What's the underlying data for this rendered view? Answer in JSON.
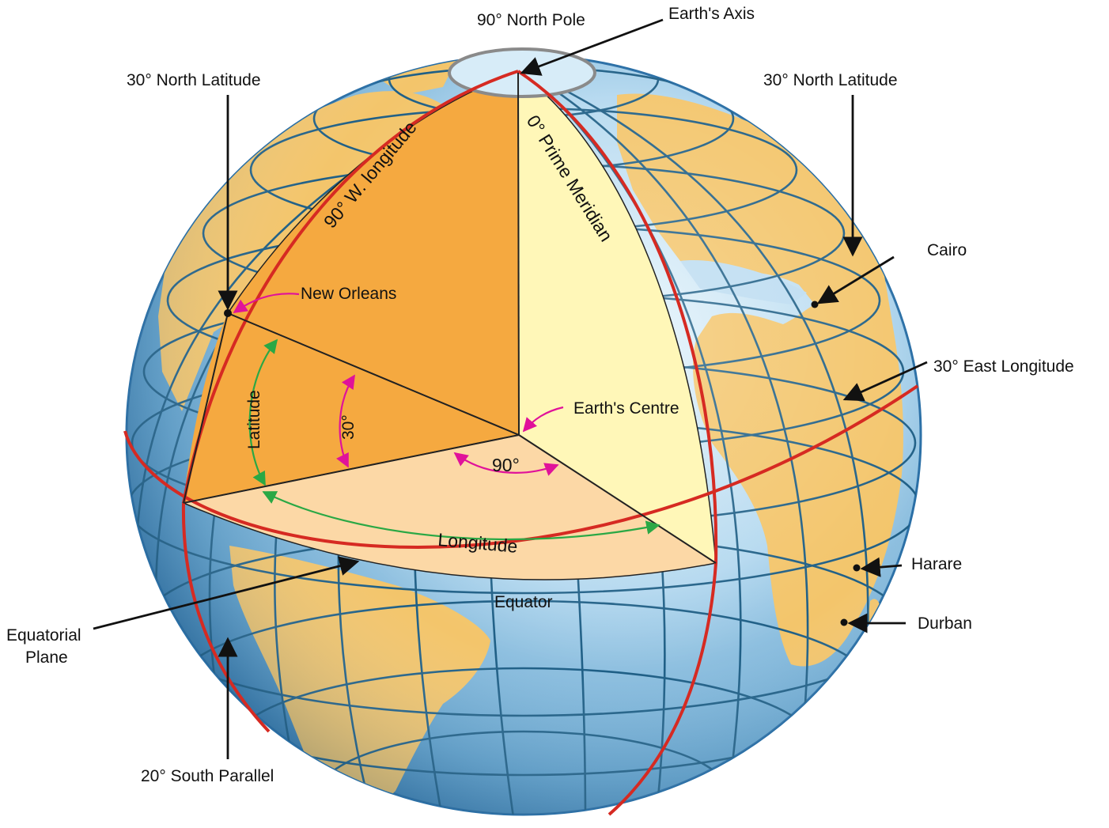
{
  "colors": {
    "ocean_light": "#d7ecf8",
    "ocean_mid": "#7fb8dc",
    "ocean_dark": "#2f79b0",
    "land": "#f3c56b",
    "grid": "#1f5f86",
    "highlight_line": "#d62a22",
    "wedge_dark_orange": "#f5a940",
    "wedge_light_yellow": "#fff7b8",
    "wedge_peach": "#fcd8a6",
    "arrow_black": "#111111",
    "arrow_magenta": "#e0129a",
    "arrow_green": "#2aa845"
  },
  "labels": {
    "north_pole": "90° North Pole",
    "earths_axis": "Earth's Axis",
    "north_lat_left": "30° North Latitude",
    "north_lat_right": "30° North Latitude",
    "w_longitude": "90° W. longitude",
    "prime_meridian": "0° Prime Meridian",
    "new_orleans": "New Orleans",
    "cairo": "Cairo",
    "east_longitude": "30° East Longitude",
    "earths_centre": "Earth's Centre",
    "latitude": "Latitude",
    "lat_angle": "30°",
    "lon_angle": "90°",
    "longitude": "Longitude",
    "equator": "Equator",
    "equatorial_plane_line1": "Equatorial",
    "equatorial_plane_line2": "Plane",
    "harare": "Harare",
    "durban": "Durban",
    "south_parallel": "20° South Parallel"
  }
}
